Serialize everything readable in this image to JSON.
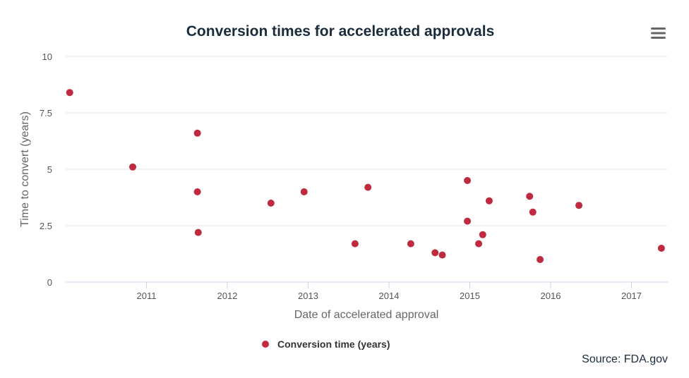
{
  "chart_data": {
    "type": "scatter",
    "title": "Conversion times for accelerated approvals",
    "xlabel": "Date of accelerated approval",
    "ylabel": "Time to convert (years)",
    "x_ticks": [
      "2011",
      "2012",
      "2013",
      "2014",
      "2015",
      "2016",
      "2017"
    ],
    "y_ticks": [
      "0",
      "2.5",
      "5",
      "7.5",
      "10"
    ],
    "xlim": [
      2010.0,
      2017.45
    ],
    "ylim": [
      0,
      10
    ],
    "grid": "horizontal",
    "legend_position": "bottom-center",
    "series": [
      {
        "name": "Conversion time (years)",
        "color": "#bf2a3f",
        "points": [
          {
            "x": 2010.05,
            "y": 8.4
          },
          {
            "x": 2010.83,
            "y": 5.1
          },
          {
            "x": 2011.63,
            "y": 6.6
          },
          {
            "x": 2011.63,
            "y": 4.0
          },
          {
            "x": 2011.64,
            "y": 2.2
          },
          {
            "x": 2012.54,
            "y": 3.5
          },
          {
            "x": 2012.95,
            "y": 4.0
          },
          {
            "x": 2013.58,
            "y": 1.7
          },
          {
            "x": 2013.74,
            "y": 4.2
          },
          {
            "x": 2014.27,
            "y": 1.7
          },
          {
            "x": 2014.57,
            "y": 1.3
          },
          {
            "x": 2014.66,
            "y": 1.2
          },
          {
            "x": 2014.97,
            "y": 4.5
          },
          {
            "x": 2014.97,
            "y": 2.7
          },
          {
            "x": 2015.11,
            "y": 1.7
          },
          {
            "x": 2015.16,
            "y": 2.1
          },
          {
            "x": 2015.24,
            "y": 3.6
          },
          {
            "x": 2015.74,
            "y": 3.8
          },
          {
            "x": 2015.78,
            "y": 3.1
          },
          {
            "x": 2015.87,
            "y": 1.0
          },
          {
            "x": 2016.35,
            "y": 3.4
          },
          {
            "x": 2017.37,
            "y": 1.5
          }
        ]
      }
    ]
  },
  "source": "Source: FDA.gov",
  "menu_icon": "hamburger-menu-icon"
}
